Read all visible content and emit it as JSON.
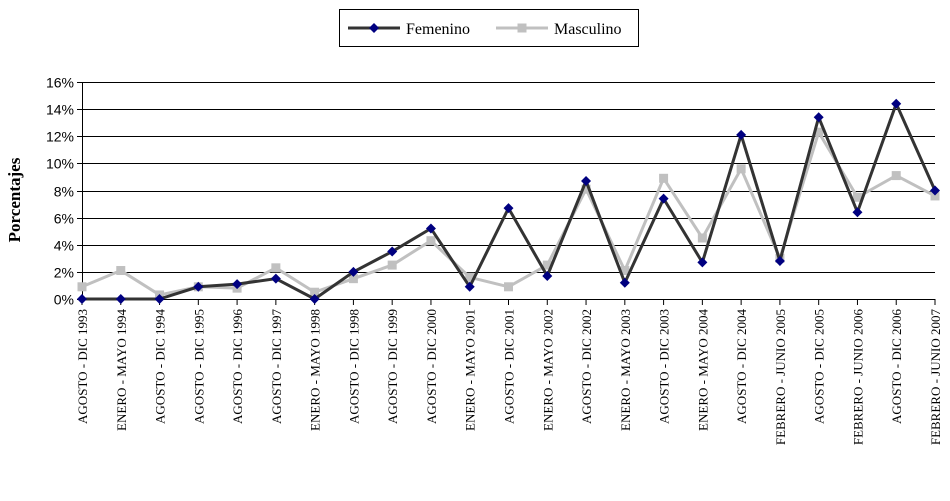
{
  "chart_data": {
    "type": "line",
    "title": "",
    "xlabel": "",
    "ylabel": "Porcentajes",
    "ylim": [
      0,
      16
    ],
    "yticks": [
      0,
      2,
      4,
      6,
      8,
      10,
      12,
      14,
      16
    ],
    "ytick_labels": [
      "0%",
      "2%",
      "4%",
      "6%",
      "8%",
      "10%",
      "12%",
      "14%",
      "16%"
    ],
    "grid": true,
    "legend_position": "top-center",
    "categories": [
      "AGOSTO - DIC 1993",
      "ENERO - MAYO 1994",
      "AGOSTO - DIC 1994",
      "AGOSTO - DIC 1995",
      "AGOSTO - DIC 1996",
      "AGOSTO - DIC 1997",
      "ENERO - MAYO 1998",
      "AGOSTO - DIC 1998",
      "AGOSTO - DIC 1999",
      "AGOSTO - DIC 2000",
      "ENERO - MAYO 2001",
      "AGOSTO - DIC 2001",
      "ENERO - MAYO 2002",
      "AGOSTO - DIC 2002",
      "ENERO - MAYO 2003",
      "AGOSTO - DIC 2003",
      "ENERO - MAYO 2004",
      "AGOSTO - DIC 2004",
      "FEBRERO - JUNIO 2005",
      "AGOSTO - DIC 2005",
      "FEBRERO - JUNIO 2006",
      "AGOSTO - DIC 2006",
      "FEBRERO - JUNIO 2007"
    ],
    "series": [
      {
        "name": "Femenino",
        "color": "#000080",
        "line_color": "#333333",
        "marker": "diamond",
        "values": [
          0.0,
          0.0,
          0.0,
          0.9,
          1.1,
          1.5,
          0.0,
          2.0,
          3.5,
          5.2,
          0.9,
          6.7,
          1.7,
          8.7,
          1.2,
          7.4,
          2.7,
          12.1,
          2.8,
          13.4,
          6.4,
          14.4,
          8.0
        ]
      },
      {
        "name": "Masculino",
        "color": "#c0c0c0",
        "line_color": "#c0c0c0",
        "marker": "square",
        "values": [
          0.9,
          2.1,
          0.3,
          0.9,
          0.8,
          2.3,
          0.5,
          1.5,
          2.5,
          4.3,
          1.6,
          0.9,
          2.5,
          8.1,
          2.1,
          8.9,
          4.5,
          9.6,
          3.0,
          12.3,
          7.5,
          9.1,
          7.6
        ]
      }
    ]
  }
}
